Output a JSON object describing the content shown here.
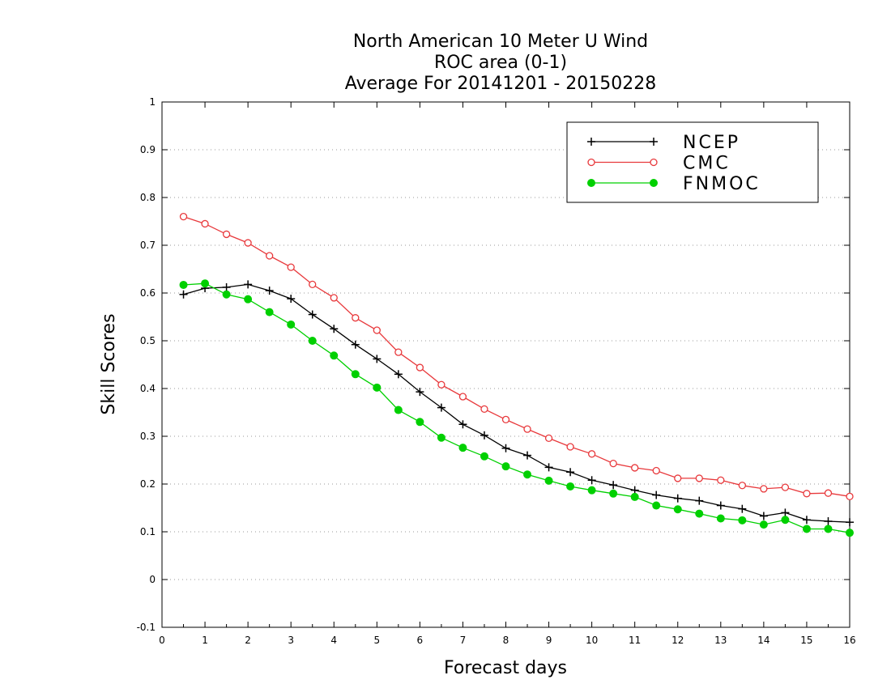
{
  "chart_data": {
    "type": "line",
    "title_lines": [
      "North American 10 Meter U Wind",
      "ROC area (0-1)",
      "Average For 20141201 - 20150228"
    ],
    "xlabel": "Forecast days",
    "ylabel": "Skill Scores",
    "xlim": [
      0,
      16
    ],
    "ylim": [
      -0.1,
      1
    ],
    "x_ticks": [
      "0",
      "1",
      "2",
      "3",
      "4",
      "5",
      "6",
      "7",
      "8",
      "9",
      "10",
      "11",
      "12",
      "13",
      "14",
      "15",
      "16"
    ],
    "y_ticks": [
      "-0.1",
      "0",
      "0.1",
      "0.2",
      "0.3",
      "0.4",
      "0.5",
      "0.6",
      "0.7",
      "0.8",
      "0.9",
      "1"
    ],
    "grid": "horizontal dotted",
    "legend_position": "top-right",
    "x": [
      0.5,
      1,
      1.5,
      2,
      2.5,
      3,
      3.5,
      4,
      4.5,
      5,
      5.5,
      6,
      6.5,
      7,
      7.5,
      8,
      8.5,
      9,
      9.5,
      10,
      10.5,
      11,
      11.5,
      12,
      12.5,
      13,
      13.5,
      14,
      14.5,
      15,
      15.5,
      16
    ],
    "series": [
      {
        "name": "NCEP",
        "color": "#000000",
        "marker": "plus",
        "values": [
          0.597,
          0.61,
          0.612,
          0.618,
          0.605,
          0.588,
          0.555,
          0.525,
          0.492,
          0.462,
          0.43,
          0.393,
          0.36,
          0.325,
          0.302,
          0.275,
          0.26,
          0.235,
          0.225,
          0.208,
          0.198,
          0.187,
          0.177,
          0.17,
          0.165,
          0.155,
          0.148,
          0.133,
          0.14,
          0.125,
          0.122,
          0.12
        ]
      },
      {
        "name": "CMC",
        "color": "#e8393c",
        "marker": "open-circle",
        "values": [
          0.76,
          0.745,
          0.723,
          0.705,
          0.678,
          0.654,
          0.618,
          0.59,
          0.548,
          0.522,
          0.476,
          0.444,
          0.408,
          0.383,
          0.357,
          0.335,
          0.315,
          0.296,
          0.278,
          0.263,
          0.243,
          0.234,
          0.228,
          0.212,
          0.212,
          0.208,
          0.197,
          0.19,
          0.193,
          0.18,
          0.181,
          0.174
        ]
      },
      {
        "name": "FNMOC",
        "color": "#00d000",
        "marker": "filled-circle",
        "values": [
          0.617,
          0.62,
          0.597,
          0.587,
          0.56,
          0.534,
          0.5,
          0.469,
          0.43,
          0.402,
          0.355,
          0.33,
          0.297,
          0.276,
          0.258,
          0.237,
          0.22,
          0.207,
          0.195,
          0.187,
          0.18,
          0.173,
          0.155,
          0.147,
          0.138,
          0.128,
          0.124,
          0.115,
          0.125,
          0.106,
          0.106,
          0.098
        ]
      }
    ]
  }
}
